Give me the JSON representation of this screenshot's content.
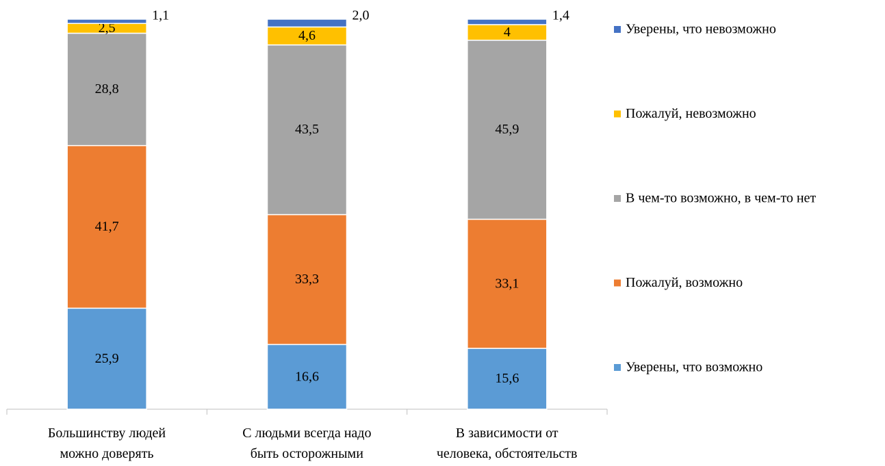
{
  "chart_data": {
    "type": "stacked_bar",
    "categories": [
      "Большинству людей\nможно доверять",
      "С людьми всегда надо\nбыть осторожными",
      "В зависимости от\nчеловека, обстоятельств"
    ],
    "series": [
      {
        "name": "Уверены, что возможно",
        "color": "#5b9bd5",
        "values": [
          25.9,
          16.6,
          15.6
        ],
        "value_labels": [
          "25,9",
          "16,6",
          "15,6"
        ]
      },
      {
        "name": "Пожалуй, возможно",
        "color": "#ed7d31",
        "values": [
          41.7,
          33.3,
          33.1
        ],
        "value_labels": [
          "41,7",
          "33,3",
          "33,1"
        ]
      },
      {
        "name": "В чем-то возможно, в чем-то нет",
        "color": "#a5a5a5",
        "values": [
          28.8,
          43.5,
          45.9
        ],
        "value_labels": [
          "28,8",
          "43,5",
          "45,9"
        ]
      },
      {
        "name": "Пожалуй, невозможно",
        "color": "#ffc000",
        "values": [
          2.5,
          4.6,
          4
        ],
        "value_labels": [
          "2,5",
          "4,6",
          "4"
        ]
      },
      {
        "name": "Уверены, что невозможно",
        "color": "#4472c4",
        "values": [
          1.1,
          2.0,
          1.4
        ],
        "value_labels": [
          "1,1",
          "2,0",
          "1,4"
        ]
      }
    ],
    "legend": "right"
  }
}
